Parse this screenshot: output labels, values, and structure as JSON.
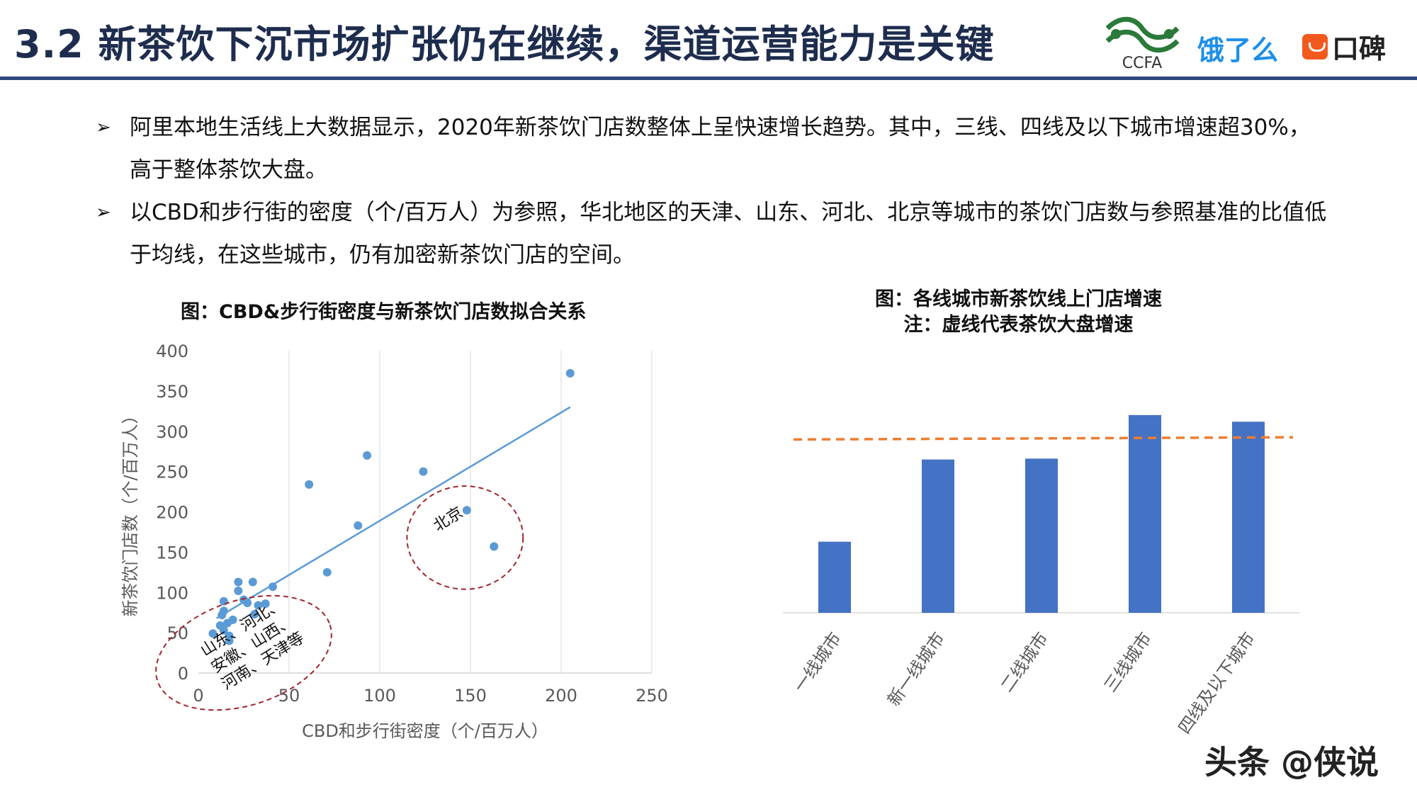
{
  "header": {
    "title": "3.2 新茶饮下沉市场扩张仍在继续，渠道运营能力是关键",
    "logos": {
      "ccfa": "CCFA",
      "eleme": "饿了么",
      "koubei": "口碑"
    }
  },
  "bullets": [
    "阿里本地生活线上大数据显示，2020年新茶饮门店数整体上呈快速增长趋势。其中，三线、四线及以下城市增速超30%，高于整体茶饮大盘。",
    "以CBD和步行街的密度（个/百万人）为参照，华北地区的天津、山东、河北、北京等城市的茶饮门店数与参照基准的比值低于均线，在这些城市，仍有加密新茶饮门店的空间。"
  ],
  "bullet_marker": "➢",
  "watermark": "头条 @侠说",
  "colors": {
    "accent": "#2e4a7e",
    "point": "#5b9bd5",
    "trend": "#5b9bd5",
    "bar": "#4472c4",
    "dashed_line": "#ed7d31",
    "ellipse": "#a0262e"
  },
  "chart_data": [
    {
      "type": "scatter",
      "title": "图：CBD&步行街密度与新茶饮门店数拟合关系",
      "xlabel": "CBD和步行街密度（个/百万人）",
      "ylabel": "新茶饮门店数（个/百万人）",
      "xlim": [
        0,
        250
      ],
      "ylim": [
        0,
        400
      ],
      "xticks": [
        0,
        50,
        100,
        150,
        200,
        250
      ],
      "yticks": [
        0,
        50,
        100,
        150,
        200,
        250,
        300,
        350,
        400
      ],
      "grid": "vertical",
      "points": [
        [
          205,
          372
        ],
        [
          93,
          270
        ],
        [
          124,
          250
        ],
        [
          61,
          234
        ],
        [
          148,
          202
        ],
        [
          88,
          183
        ],
        [
          163,
          157
        ],
        [
          71,
          125
        ],
        [
          22,
          113
        ],
        [
          30,
          113
        ],
        [
          41,
          107
        ],
        [
          22,
          102
        ],
        [
          14,
          89
        ],
        [
          25,
          91
        ],
        [
          37,
          86
        ],
        [
          27,
          87
        ],
        [
          33,
          84
        ],
        [
          14,
          77
        ],
        [
          13,
          72
        ],
        [
          31,
          73
        ],
        [
          19,
          66
        ],
        [
          16,
          62
        ],
        [
          12,
          59
        ],
        [
          14,
          53
        ],
        [
          8,
          49
        ],
        [
          17,
          46
        ],
        [
          17,
          40
        ]
      ],
      "trendline": {
        "x": [
          10,
          205
        ],
        "y": [
          68,
          330
        ]
      },
      "annotations": [
        {
          "text": "山东、河北、安徽、山西、河南、天津等",
          "ellipse_center": [
            25,
            25
          ],
          "ellipse_radius": [
            50,
            65
          ],
          "label_angle": -32
        },
        {
          "text": "北京",
          "ellipse_center": [
            147,
            168
          ],
          "ellipse_radius": [
            32,
            64
          ],
          "label_angle": -32
        }
      ]
    },
    {
      "type": "bar",
      "title": "图：各线城市新茶饮线上门店增速",
      "subtitle": "注：虚线代表茶饮大盘增速",
      "categories": [
        "一线城市",
        "新一线城市",
        "二线城市",
        "三线城市",
        "四线及以下城市"
      ],
      "values": [
        0.16,
        0.345,
        0.347,
        0.445,
        0.43
      ],
      "reference_line": {
        "y_start": 0.39,
        "y_end": 0.395,
        "style": "dashed"
      },
      "ylim": [
        0,
        0.55
      ],
      "axis_labels_shown": false
    }
  ]
}
